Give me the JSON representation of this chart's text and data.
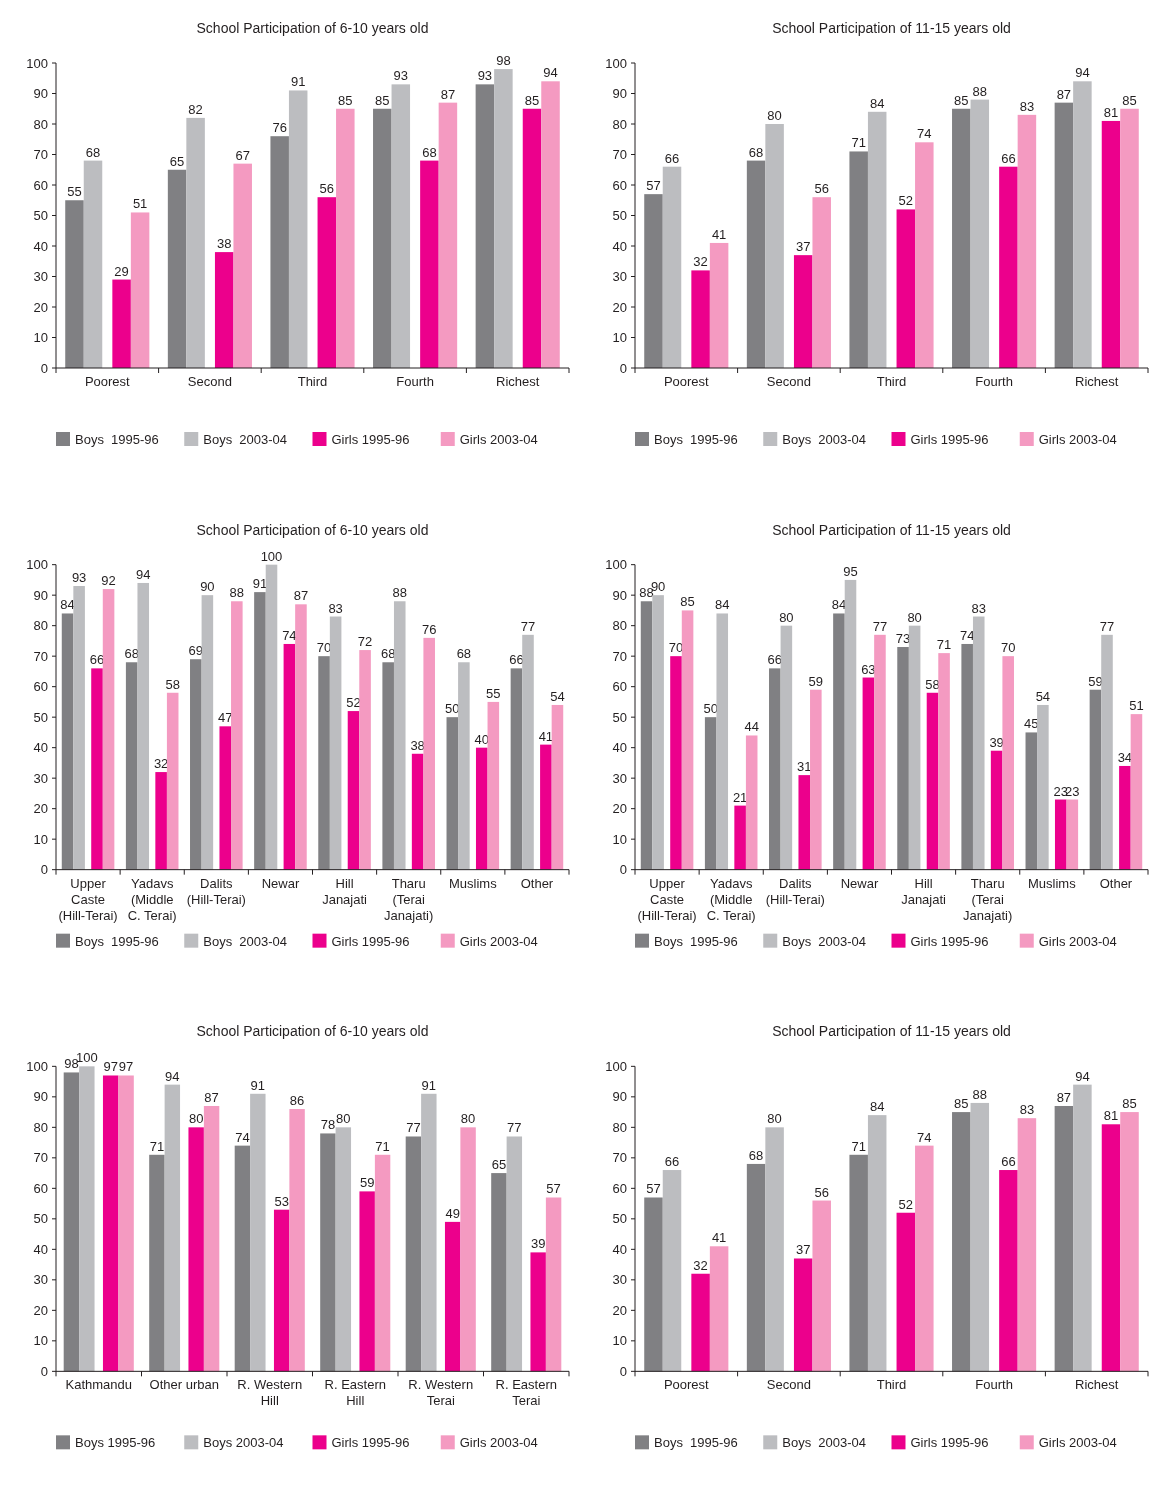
{
  "chart_data": [
    {
      "type": "bar",
      "title": "School Participation of 6-10 years old",
      "categories": [
        "Poorest",
        "Second",
        "Third",
        "Fourth",
        "Richest"
      ],
      "series": [
        {
          "name": "Boys  1995-96",
          "color": "#808083",
          "values": [
            55,
            65,
            76,
            85,
            93
          ]
        },
        {
          "name": "Boys  2003-04",
          "color": "#bcbdc0",
          "values": [
            68,
            82,
            91,
            93,
            98
          ]
        },
        {
          "name": "Girls 1995-96",
          "color": "#ec008c",
          "values": [
            29,
            38,
            56,
            68,
            85
          ]
        },
        {
          "name": "Girls 2003-04",
          "color": "#f49ac1",
          "values": [
            51,
            67,
            85,
            87,
            94
          ]
        }
      ],
      "ylim": [
        0,
        100
      ],
      "yticks": [
        0,
        10,
        20,
        30,
        40,
        50,
        60,
        70,
        80,
        90,
        100
      ],
      "data_labels": true,
      "legend": "bottom",
      "grid": false
    },
    {
      "type": "bar",
      "title": "School Participation of 11-15 years old",
      "categories": [
        "Poorest",
        "Second",
        "Third",
        "Fourth",
        "Richest"
      ],
      "series": [
        {
          "name": "Boys  1995-96",
          "color": "#808083",
          "values": [
            57,
            68,
            71,
            85,
            87
          ]
        },
        {
          "name": "Boys  2003-04",
          "color": "#bcbdc0",
          "values": [
            66,
            80,
            84,
            88,
            94
          ]
        },
        {
          "name": "Girls 1995-96",
          "color": "#ec008c",
          "values": [
            32,
            37,
            52,
            66,
            81
          ]
        },
        {
          "name": "Girls 2003-04",
          "color": "#f49ac1",
          "values": [
            41,
            56,
            74,
            83,
            85
          ]
        }
      ],
      "ylim": [
        0,
        100
      ],
      "yticks": [
        0,
        10,
        20,
        30,
        40,
        50,
        60,
        70,
        80,
        90,
        100
      ],
      "data_labels": true,
      "legend": "bottom",
      "grid": false
    },
    {
      "type": "bar",
      "title": "School Participation of 6-10 years old",
      "categories": [
        "Upper Caste (Hill-Terai)",
        "Yadavs (Middle C. Terai)",
        "Dalits (Hill-Terai)",
        "Newar",
        "Hill Janajati",
        "Tharu (Terai Janajati)",
        "Muslims",
        "Other"
      ],
      "series": [
        {
          "name": "Boys  1995-96",
          "color": "#808083",
          "values": [
            84,
            68,
            69,
            91,
            70,
            68,
            50,
            66
          ]
        },
        {
          "name": "Boys  2003-04",
          "color": "#bcbdc0",
          "values": [
            93,
            94,
            90,
            100,
            83,
            88,
            68,
            77
          ]
        },
        {
          "name": "Girls 1995-96",
          "color": "#ec008c",
          "values": [
            66,
            32,
            47,
            74,
            52,
            38,
            40,
            41
          ]
        },
        {
          "name": "Girls 2003-04",
          "color": "#f49ac1",
          "values": [
            92,
            58,
            88,
            87,
            72,
            76,
            55,
            54
          ]
        }
      ],
      "ylim": [
        0,
        100
      ],
      "yticks": [
        0,
        10,
        20,
        30,
        40,
        50,
        60,
        70,
        80,
        90,
        100
      ],
      "data_labels": true,
      "legend": "bottom",
      "grid": false
    },
    {
      "type": "bar",
      "title": "School Participation of 11-15 years old",
      "categories": [
        "Upper Caste (Hill-Terai)",
        "Yadavs (Middle C. Terai)",
        "Dalits (Hill-Terai)",
        "Newar",
        "Hill Janajati",
        "Tharu (Terai Janajati)",
        "Muslims",
        "Other"
      ],
      "series": [
        {
          "name": "Boys  1995-96",
          "color": "#808083",
          "values": [
            88,
            50,
            66,
            84,
            73,
            74,
            45,
            59
          ]
        },
        {
          "name": "Boys  2003-04",
          "color": "#bcbdc0",
          "values": [
            90,
            84,
            80,
            95,
            80,
            83,
            54,
            77
          ]
        },
        {
          "name": "Girls 1995-96",
          "color": "#ec008c",
          "values": [
            70,
            21,
            31,
            63,
            58,
            39,
            23,
            34
          ]
        },
        {
          "name": "Girls 2003-04",
          "color": "#f49ac1",
          "values": [
            85,
            44,
            59,
            77,
            71,
            70,
            23,
            51
          ]
        }
      ],
      "ylim": [
        0,
        100
      ],
      "yticks": [
        0,
        10,
        20,
        30,
        40,
        50,
        60,
        70,
        80,
        90,
        100
      ],
      "data_labels": true,
      "legend": "bottom",
      "grid": false
    },
    {
      "type": "bar",
      "title": "School Participation of 6-10 years old",
      "categories": [
        "Kathmandu",
        "Other urban",
        "R. Western Hill",
        "R. Eastern Hill",
        "R. Western Terai",
        "R. Eastern Terai"
      ],
      "series": [
        {
          "name": "Boys 1995-96",
          "color": "#808083",
          "values": [
            98,
            71,
            74,
            78,
            77,
            65
          ]
        },
        {
          "name": "Boys 2003-04",
          "color": "#bcbdc0",
          "values": [
            100,
            94,
            91,
            80,
            91,
            77
          ]
        },
        {
          "name": "Girls 1995-96",
          "color": "#ec008c",
          "values": [
            97,
            80,
            53,
            59,
            49,
            39
          ]
        },
        {
          "name": "Girls 2003-04",
          "color": "#f49ac1",
          "values": [
            97,
            87,
            86,
            71,
            80,
            57
          ]
        }
      ],
      "ylim": [
        0,
        100
      ],
      "yticks": [
        0,
        10,
        20,
        30,
        40,
        50,
        60,
        70,
        80,
        90,
        100
      ],
      "data_labels": true,
      "legend": "bottom",
      "grid": false
    },
    {
      "type": "bar",
      "title": "School Participation of 11-15 years old",
      "categories": [
        "Poorest",
        "Second",
        "Third",
        "Fourth",
        "Richest"
      ],
      "series": [
        {
          "name": "Boys  1995-96",
          "color": "#808083",
          "values": [
            57,
            68,
            71,
            85,
            87
          ]
        },
        {
          "name": "Boys  2003-04",
          "color": "#bcbdc0",
          "values": [
            66,
            80,
            84,
            88,
            94
          ]
        },
        {
          "name": "Girls 1995-96",
          "color": "#ec008c",
          "values": [
            32,
            37,
            52,
            66,
            81
          ]
        },
        {
          "name": "Girls 2003-04",
          "color": "#f49ac1",
          "values": [
            41,
            56,
            74,
            83,
            85
          ]
        }
      ],
      "ylim": [
        0,
        100
      ],
      "yticks": [
        0,
        10,
        20,
        30,
        40,
        50,
        60,
        70,
        80,
        90,
        100
      ],
      "data_labels": true,
      "legend": "bottom",
      "grid": false
    }
  ]
}
